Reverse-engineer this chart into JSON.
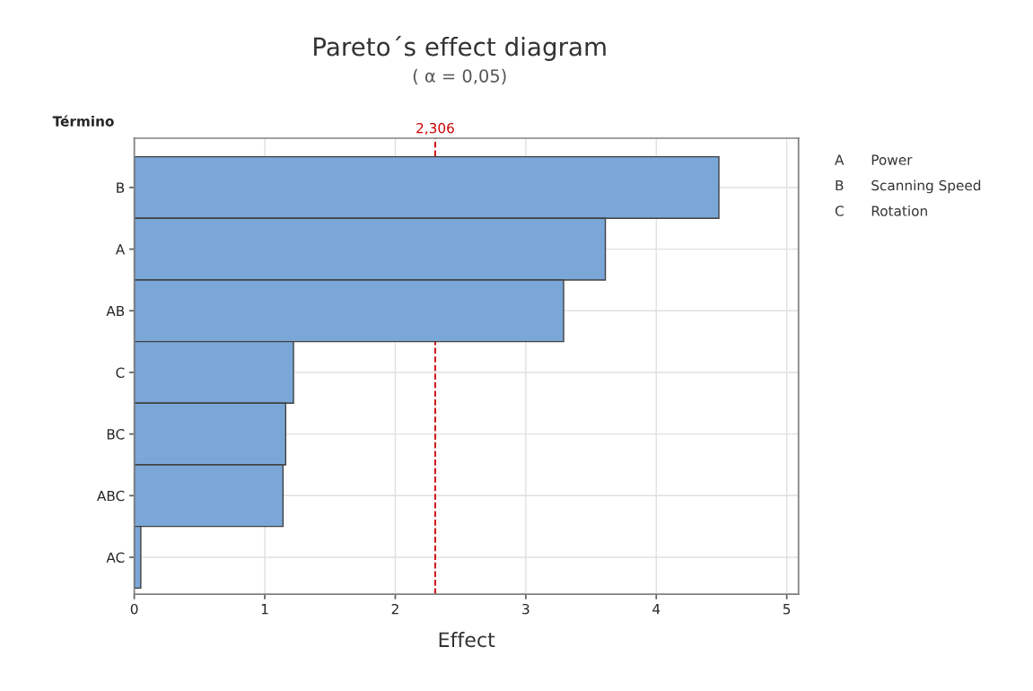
{
  "chart_data": {
    "type": "bar",
    "orientation": "horizontal",
    "title": "Pareto´s effect diagram",
    "subtitle": "( α = 0,05)",
    "xlabel": "Effect",
    "ylabel": "Término",
    "categories": [
      "B",
      "A",
      "AB",
      "C",
      "BC",
      "ABC",
      "AC"
    ],
    "series": [
      {
        "color": "#7ba7d8",
        "values": [
          4.48,
          3.61,
          3.29,
          1.22,
          1.16,
          1.14,
          0.05
        ]
      }
    ],
    "xlim": [
      0,
      5.09
    ],
    "xticks": [
      0,
      1,
      2,
      3,
      4,
      5
    ],
    "grid": true,
    "legend": false,
    "ref_lines": [
      {
        "axis": "x",
        "value": 2.306,
        "label": "2,306",
        "color": "#cc0000",
        "line_style": "dashed"
      }
    ],
    "annotations": [
      "A",
      "Power",
      "B",
      "Scanning Speed",
      "C",
      "Rotation"
    ]
  }
}
